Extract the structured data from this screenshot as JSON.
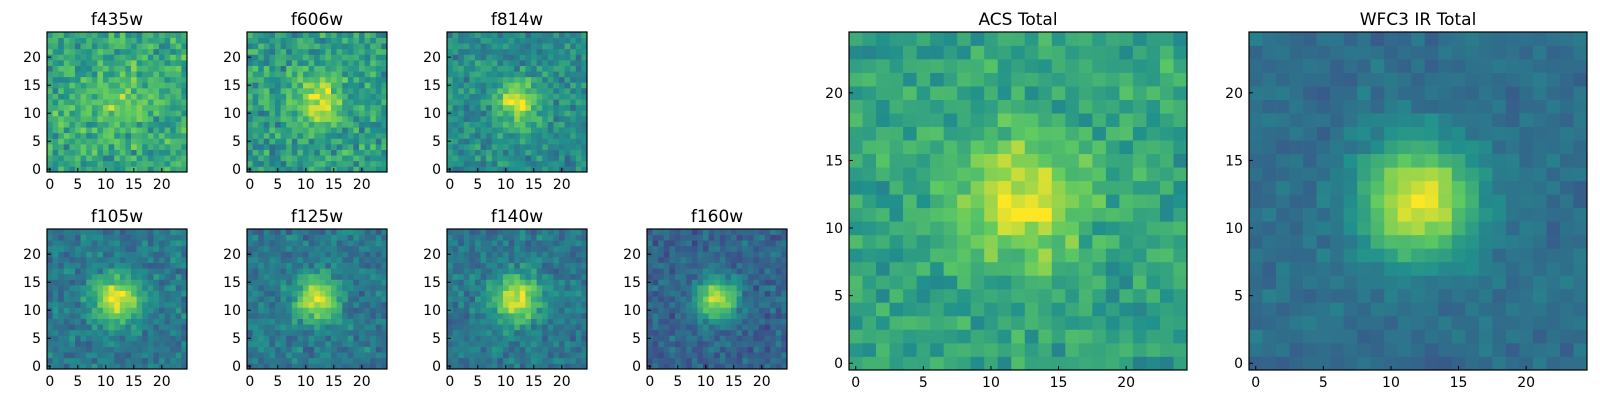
{
  "figure": {
    "colormap": "viridis",
    "colormap_stops": [
      "#440154",
      "#3b528b",
      "#21918c",
      "#5ec962",
      "#fde725"
    ]
  },
  "chart_data": [
    {
      "type": "heatmap",
      "title": "f435w",
      "grid_size": 25,
      "xticks": [
        0,
        5,
        10,
        15,
        20
      ],
      "yticks": [
        0,
        5,
        10,
        15,
        20
      ],
      "xlim": [
        0,
        25
      ],
      "ylim": [
        0,
        25
      ],
      "source": {
        "peak": 0.15,
        "sigma": 3.5,
        "background": 0.6,
        "noise": 0.22,
        "seed": 11
      }
    },
    {
      "type": "heatmap",
      "title": "f606w",
      "grid_size": 25,
      "xticks": [
        0,
        5,
        10,
        15,
        20
      ],
      "yticks": [
        0,
        5,
        10,
        15,
        20
      ],
      "xlim": [
        0,
        25
      ],
      "ylim": [
        0,
        25
      ],
      "source": {
        "peak": 0.35,
        "sigma": 3.2,
        "background": 0.55,
        "noise": 0.22,
        "seed": 23
      }
    },
    {
      "type": "heatmap",
      "title": "f814w",
      "grid_size": 25,
      "xticks": [
        0,
        5,
        10,
        15,
        20
      ],
      "yticks": [
        0,
        5,
        10,
        15,
        20
      ],
      "xlim": [
        0,
        25
      ],
      "ylim": [
        0,
        25
      ],
      "source": {
        "peak": 0.45,
        "sigma": 2.8,
        "background": 0.48,
        "noise": 0.18,
        "seed": 37
      }
    },
    {
      "type": "heatmap",
      "title": "f105w",
      "grid_size": 25,
      "xticks": [
        0,
        5,
        10,
        15,
        20
      ],
      "yticks": [
        0,
        5,
        10,
        15,
        20
      ],
      "xlim": [
        0,
        25
      ],
      "ylim": [
        0,
        25
      ],
      "source": {
        "peak": 0.55,
        "sigma": 3.0,
        "background": 0.4,
        "noise": 0.15,
        "seed": 41
      }
    },
    {
      "type": "heatmap",
      "title": "f125w",
      "grid_size": 25,
      "xticks": [
        0,
        5,
        10,
        15,
        20
      ],
      "yticks": [
        0,
        5,
        10,
        15,
        20
      ],
      "xlim": [
        0,
        25
      ],
      "ylim": [
        0,
        25
      ],
      "source": {
        "peak": 0.55,
        "sigma": 2.8,
        "background": 0.4,
        "noise": 0.16,
        "seed": 53
      }
    },
    {
      "type": "heatmap",
      "title": "f140w",
      "grid_size": 25,
      "xticks": [
        0,
        5,
        10,
        15,
        20
      ],
      "yticks": [
        0,
        5,
        10,
        15,
        20
      ],
      "xlim": [
        0,
        25
      ],
      "ylim": [
        0,
        25
      ],
      "source": {
        "peak": 0.55,
        "sigma": 3.0,
        "background": 0.4,
        "noise": 0.14,
        "seed": 67
      }
    },
    {
      "type": "heatmap",
      "title": "f160w",
      "grid_size": 25,
      "xticks": [
        0,
        5,
        10,
        15,
        20
      ],
      "yticks": [
        0,
        5,
        10,
        15,
        20
      ],
      "xlim": [
        0,
        25
      ],
      "ylim": [
        0,
        25
      ],
      "source": {
        "peak": 0.6,
        "sigma": 2.6,
        "background": 0.32,
        "noise": 0.14,
        "seed": 79
      }
    },
    {
      "type": "heatmap",
      "title": "ACS Total",
      "grid_size": 25,
      "xticks": [
        0,
        5,
        10,
        15,
        20
      ],
      "yticks": [
        0,
        5,
        10,
        15,
        20
      ],
      "xlim": [
        0,
        25
      ],
      "ylim": [
        0,
        25
      ],
      "source": {
        "peak": 0.38,
        "sigma": 3.2,
        "background": 0.58,
        "noise": 0.16,
        "seed": 83
      }
    },
    {
      "type": "heatmap",
      "title": "WFC3 IR Total",
      "grid_size": 25,
      "xticks": [
        0,
        5,
        10,
        15,
        20
      ],
      "yticks": [
        0,
        5,
        10,
        15,
        20
      ],
      "xlim": [
        0,
        25
      ],
      "ylim": [
        0,
        25
      ],
      "source": {
        "peak": 0.62,
        "sigma": 3.0,
        "background": 0.36,
        "noise": 0.08,
        "seed": 97
      }
    }
  ]
}
